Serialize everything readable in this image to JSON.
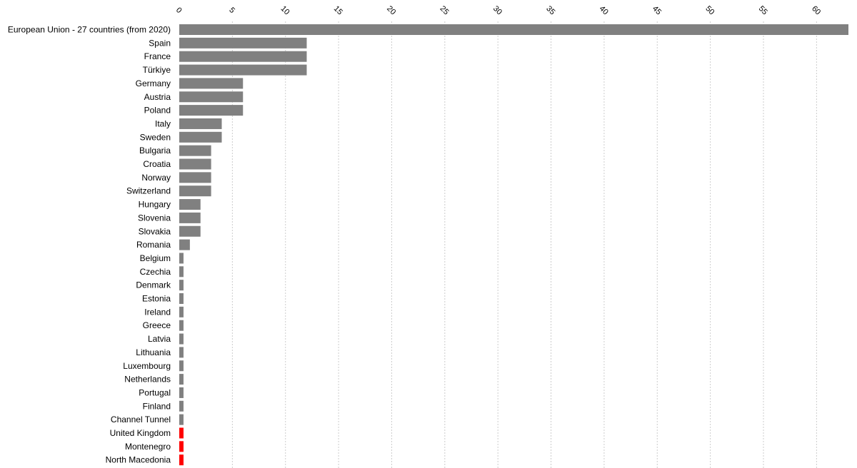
{
  "chart_data": {
    "type": "bar",
    "orientation": "horizontal",
    "title": "",
    "xlabel": "",
    "ylabel": "",
    "xlim": [
      0,
      63
    ],
    "x_ticks": [
      0,
      5,
      10,
      15,
      20,
      25,
      30,
      35,
      40,
      45,
      50,
      55,
      60
    ],
    "x_tick_labels": [
      "0",
      "5",
      "10",
      "15",
      "20",
      "25",
      "30",
      "35",
      "40",
      "45",
      "50",
      "55",
      "60"
    ],
    "x_axis_position": "top",
    "grid": true,
    "legend": "none",
    "colors": {
      "default": "#808080",
      "highlight": "#ff0000"
    },
    "categories": [
      "European Union - 27 countries (from 2020)",
      "Spain",
      "France",
      "Türkiye",
      "Germany",
      "Austria",
      "Poland",
      "Italy",
      "Sweden",
      "Bulgaria",
      "Croatia",
      "Norway",
      "Switzerland",
      "Hungary",
      "Slovenia",
      "Slovakia",
      "Romania",
      "Belgium",
      "Czechia",
      "Denmark",
      "Estonia",
      "Ireland",
      "Greece",
      "Latvia",
      "Lithuania",
      "Luxembourg",
      "Netherlands",
      "Portugal",
      "Finland",
      "Channel Tunnel",
      "United Kingdom",
      "Montenegro",
      "North Macedonia"
    ],
    "values": [
      63,
      12,
      12,
      12,
      6,
      6,
      6,
      4,
      4,
      3,
      3,
      3,
      3,
      2,
      2,
      2,
      1,
      0.4,
      0.4,
      0.4,
      0.4,
      0.4,
      0.4,
      0.4,
      0.4,
      0.4,
      0.4,
      0.4,
      0.4,
      0.4,
      0.4,
      0.4,
      0.4
    ],
    "highlighted": [
      "United Kingdom",
      "Montenegro",
      "North Macedonia"
    ]
  }
}
